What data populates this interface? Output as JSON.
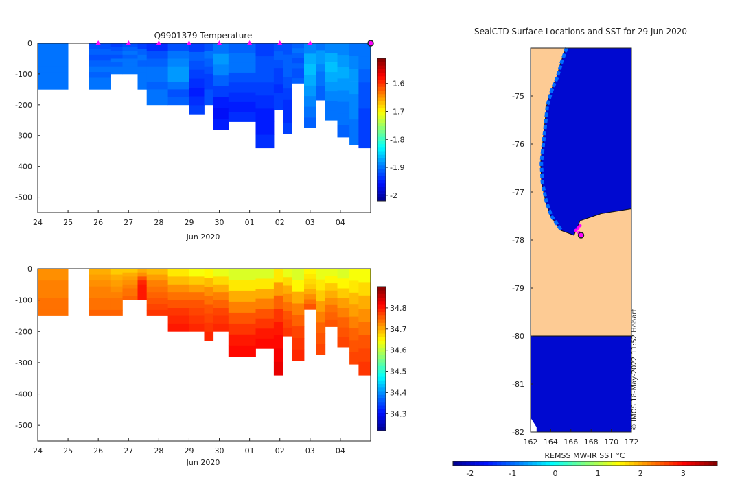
{
  "colors": {
    "temp_scale": [
      "#00008f",
      "#0010ff",
      "#0080ff",
      "#00ffff",
      "#80ff80",
      "#ffff00",
      "#ff8000",
      "#ff0000",
      "#800000"
    ],
    "land": "#fdcb94",
    "sea_deep": "#00008f",
    "marker": "#ff00ff"
  },
  "chart_data": [
    {
      "id": "temperature",
      "type": "heatmap",
      "title": "Q9901379  Temperature",
      "xlabel": "Jun 2020",
      "x_ticks": [
        "24",
        "25",
        "26",
        "27",
        "28",
        "29",
        "30",
        "01",
        "02",
        "03",
        "04"
      ],
      "x_range": [
        24,
        35
      ],
      "ylim": [
        -550,
        0
      ],
      "y_ticks": [
        0,
        -100,
        -200,
        -300,
        -400,
        -500
      ],
      "colorbar": {
        "range": [
          -2.02,
          -1.51
        ],
        "ticks": [
          -1.6,
          -1.7,
          -1.8,
          -1.9,
          -2
        ]
      },
      "markers_x": [
        26,
        27,
        28,
        29,
        30,
        31,
        32,
        33
      ],
      "endpoint_x": 35,
      "profiles": [
        {
          "x0": 24.0,
          "x1": 25.0,
          "depth": 150,
          "values": [
            -1.9,
            -1.9,
            -1.9,
            -1.9,
            -1.9,
            -1.9,
            -1.9,
            -1.9
          ]
        },
        {
          "x0": 25.7,
          "x1": 26.4,
          "depth": 150,
          "values": [
            -1.92,
            -1.91,
            -1.92,
            -1.91,
            -1.9,
            -1.91,
            -1.9,
            -1.9
          ]
        },
        {
          "x0": 26.4,
          "x1": 26.8,
          "depth": 100,
          "values": [
            -1.93,
            -1.92,
            -1.91,
            -1.92,
            -1.9,
            -1.91,
            -1.9,
            -1.9
          ]
        },
        {
          "x0": 26.8,
          "x1": 27.3,
          "depth": 100,
          "values": [
            -1.92,
            -1.91,
            -1.9,
            -1.91,
            -1.9,
            -1.9,
            -1.9,
            -1.9
          ]
        },
        {
          "x0": 27.3,
          "x1": 27.6,
          "depth": 150,
          "values": [
            -1.93,
            -1.91,
            -1.9,
            -1.91,
            -1.9,
            -1.9,
            -1.9,
            -1.9
          ]
        },
        {
          "x0": 27.6,
          "x1": 28.3,
          "depth": 200,
          "values": [
            -1.94,
            -1.92,
            -1.91,
            -1.9,
            -1.9,
            -1.91,
            -1.9,
            -1.9
          ]
        },
        {
          "x0": 28.3,
          "x1": 29.0,
          "depth": 200,
          "values": [
            -1.92,
            -1.9,
            -1.89,
            -1.88,
            -1.88,
            -1.9,
            -1.92,
            -1.91
          ]
        },
        {
          "x0": 29.0,
          "x1": 29.5,
          "depth": 230,
          "values": [
            -1.93,
            -1.91,
            -1.92,
            -1.93,
            -1.94,
            -1.95,
            -1.94,
            -1.93
          ]
        },
        {
          "x0": 29.5,
          "x1": 29.8,
          "depth": 200,
          "values": [
            -1.92,
            -1.9,
            -1.91,
            -1.92,
            -1.93,
            -1.93,
            -1.92,
            -1.92
          ]
        },
        {
          "x0": 29.8,
          "x1": 30.3,
          "depth": 280,
          "values": [
            -1.9,
            -1.88,
            -1.89,
            -1.91,
            -1.93,
            -1.95,
            -1.96,
            -1.95
          ]
        },
        {
          "x0": 30.3,
          "x1": 31.2,
          "depth": 255,
          "values": [
            -1.91,
            -1.9,
            -1.9,
            -1.92,
            -1.93,
            -1.94,
            -1.95,
            -1.94
          ]
        },
        {
          "x0": 31.2,
          "x1": 31.8,
          "depth": 340,
          "values": [
            -1.93,
            -1.92,
            -1.92,
            -1.93,
            -1.94,
            -1.95,
            -1.95,
            -1.94
          ]
        },
        {
          "x0": 31.8,
          "x1": 32.1,
          "depth": 215,
          "values": [
            -1.92,
            -1.91,
            -1.92,
            -1.93,
            -1.93,
            -1.94,
            -1.93,
            -1.93
          ]
        },
        {
          "x0": 32.1,
          "x1": 32.4,
          "depth": 295,
          "values": [
            -1.92,
            -1.91,
            -1.91,
            -1.92,
            -1.93,
            -1.94,
            -1.94,
            -1.93
          ]
        },
        {
          "x0": 32.4,
          "x1": 32.8,
          "depth": 130,
          "values": [
            -1.91,
            -1.9,
            -1.91,
            -1.92,
            -1.91,
            -1.92,
            -1.92,
            -1.91
          ]
        },
        {
          "x0": 32.8,
          "x1": 33.2,
          "depth": 275,
          "values": [
            -1.89,
            -1.87,
            -1.86,
            -1.87,
            -1.88,
            -1.89,
            -1.9,
            -1.91
          ]
        },
        {
          "x0": 33.2,
          "x1": 33.5,
          "depth": 185,
          "values": [
            -1.9,
            -1.88,
            -1.88,
            -1.89,
            -1.9,
            -1.9,
            -1.91,
            -1.91
          ]
        },
        {
          "x0": 33.5,
          "x1": 33.9,
          "depth": 250,
          "values": [
            -1.89,
            -1.87,
            -1.86,
            -1.87,
            -1.88,
            -1.89,
            -1.9,
            -1.9
          ]
        },
        {
          "x0": 33.9,
          "x1": 34.3,
          "depth": 305,
          "values": [
            -1.89,
            -1.88,
            -1.87,
            -1.88,
            -1.89,
            -1.9,
            -1.9,
            -1.91
          ]
        },
        {
          "x0": 34.3,
          "x1": 34.6,
          "depth": 330,
          "values": [
            -1.9,
            -1.89,
            -1.88,
            -1.88,
            -1.89,
            -1.89,
            -1.9,
            -1.9
          ]
        },
        {
          "x0": 34.6,
          "x1": 35.0,
          "depth": 340,
          "values": [
            -1.9,
            -1.9,
            -1.91,
            -1.92,
            -1.92,
            -1.93,
            -1.93,
            -1.93
          ]
        }
      ]
    },
    {
      "id": "salinity",
      "type": "heatmap",
      "title": "",
      "xlabel": "Jun 2020",
      "x_ticks": [
        "24",
        "25",
        "26",
        "27",
        "28",
        "29",
        "30",
        "01",
        "02",
        "03",
        "04"
      ],
      "x_range": [
        24,
        35
      ],
      "ylim": [
        -550,
        0
      ],
      "y_ticks": [
        0,
        -100,
        -200,
        -300,
        -400,
        -500
      ],
      "colorbar": {
        "range": [
          34.22,
          34.9
        ],
        "ticks": [
          34.8,
          34.7,
          34.6,
          34.5,
          34.4,
          34.3
        ]
      },
      "profiles": [
        {
          "x0": 24.0,
          "x1": 25.0,
          "depth": 150,
          "values": [
            34.72,
            34.72,
            34.73,
            34.73,
            34.73,
            34.74,
            34.74,
            34.74
          ]
        },
        {
          "x0": 25.7,
          "x1": 26.4,
          "depth": 150,
          "values": [
            34.7,
            34.71,
            34.72,
            34.73,
            34.73,
            34.74,
            34.74,
            34.75
          ]
        },
        {
          "x0": 26.4,
          "x1": 26.8,
          "depth": 150,
          "values": [
            34.68,
            34.7,
            34.71,
            34.72,
            34.73,
            34.74,
            34.74,
            34.75
          ]
        },
        {
          "x0": 26.8,
          "x1": 27.3,
          "depth": 100,
          "values": [
            34.68,
            34.7,
            34.71,
            34.72,
            34.73,
            34.74,
            34.74,
            34.75
          ]
        },
        {
          "x0": 27.3,
          "x1": 27.6,
          "depth": 100,
          "values": [
            34.7,
            34.72,
            34.76,
            34.79,
            34.8,
            34.8,
            34.8,
            34.8
          ]
        },
        {
          "x0": 27.6,
          "x1": 28.3,
          "depth": 150,
          "values": [
            34.69,
            34.71,
            34.73,
            34.74,
            34.75,
            34.76,
            34.77,
            34.78
          ]
        },
        {
          "x0": 28.3,
          "x1": 29.0,
          "depth": 200,
          "values": [
            34.66,
            34.69,
            34.72,
            34.74,
            34.76,
            34.78,
            34.79,
            34.8
          ]
        },
        {
          "x0": 29.0,
          "x1": 29.5,
          "depth": 200,
          "values": [
            34.64,
            34.68,
            34.71,
            34.74,
            34.76,
            34.77,
            34.78,
            34.79
          ]
        },
        {
          "x0": 29.5,
          "x1": 29.8,
          "depth": 230,
          "values": [
            34.65,
            34.69,
            34.72,
            34.74,
            34.76,
            34.77,
            34.78,
            34.79
          ]
        },
        {
          "x0": 29.8,
          "x1": 30.3,
          "depth": 200,
          "values": [
            34.63,
            34.67,
            34.7,
            34.73,
            34.75,
            34.77,
            34.78,
            34.79
          ]
        },
        {
          "x0": 30.3,
          "x1": 31.2,
          "depth": 280,
          "values": [
            34.62,
            34.66,
            34.7,
            34.73,
            34.76,
            34.78,
            34.8,
            34.81
          ]
        },
        {
          "x0": 31.2,
          "x1": 31.8,
          "depth": 255,
          "values": [
            34.62,
            34.66,
            34.7,
            34.73,
            34.76,
            34.78,
            34.8,
            34.81
          ]
        },
        {
          "x0": 31.8,
          "x1": 32.1,
          "depth": 340,
          "values": [
            34.66,
            34.71,
            34.75,
            34.78,
            34.8,
            34.81,
            34.82,
            34.83
          ]
        },
        {
          "x0": 32.1,
          "x1": 32.4,
          "depth": 215,
          "values": [
            34.63,
            34.67,
            34.7,
            34.72,
            34.74,
            34.76,
            34.77,
            34.78
          ]
        },
        {
          "x0": 32.4,
          "x1": 32.8,
          "depth": 295,
          "values": [
            34.62,
            34.65,
            34.7,
            34.73,
            34.75,
            34.77,
            34.78,
            34.79
          ]
        },
        {
          "x0": 32.8,
          "x1": 33.2,
          "depth": 130,
          "values": [
            34.65,
            34.66,
            34.67,
            34.68,
            34.7,
            34.72,
            34.74,
            34.76
          ]
        },
        {
          "x0": 33.2,
          "x1": 33.5,
          "depth": 275,
          "values": [
            34.63,
            34.66,
            34.68,
            34.71,
            34.73,
            34.75,
            34.76,
            34.77
          ]
        },
        {
          "x0": 33.5,
          "x1": 33.9,
          "depth": 185,
          "values": [
            34.63,
            34.65,
            34.68,
            34.7,
            34.72,
            34.74,
            34.75,
            34.76
          ]
        },
        {
          "x0": 33.9,
          "x1": 34.3,
          "depth": 250,
          "values": [
            34.62,
            34.65,
            34.68,
            34.71,
            34.73,
            34.75,
            34.76,
            34.77
          ]
        },
        {
          "x0": 34.3,
          "x1": 34.6,
          "depth": 305,
          "values": [
            34.64,
            34.66,
            34.69,
            34.71,
            34.73,
            34.75,
            34.76,
            34.77
          ]
        },
        {
          "x0": 34.6,
          "x1": 35.0,
          "depth": 340,
          "values": [
            34.64,
            34.67,
            34.7,
            34.72,
            34.74,
            34.76,
            34.77,
            34.78
          ]
        }
      ]
    },
    {
      "id": "sst_map",
      "type": "heatmap",
      "title": "SealCTD Surface Locations and SST for 29 Jun 2020",
      "x_ticks": [
        "162",
        "164",
        "166",
        "168",
        "170",
        "172"
      ],
      "y_ticks": [
        "-75",
        "-76",
        "-77",
        "-78",
        "-79",
        "-80",
        "-81",
        "-82"
      ],
      "lon_range": [
        162,
        172
      ],
      "lat_range": [
        -82,
        -74
      ],
      "colorbar": {
        "label": "REMSS MW-IR SST °C",
        "range": [
          -2.4,
          3.8
        ],
        "ticks": [
          "-2",
          "-1",
          "0",
          "1",
          "2",
          "3"
        ]
      },
      "credit": "© IMOS 18-May-2022 11:52 Hobart",
      "coast_lon_at_lat": [
        [
          -74.0,
          165.5
        ],
        [
          -74.3,
          165.0
        ],
        [
          -74.6,
          164.6
        ],
        [
          -74.9,
          164.0
        ],
        [
          -75.2,
          163.6
        ],
        [
          -75.6,
          163.4
        ],
        [
          -76.0,
          163.2
        ],
        [
          -76.4,
          163.0
        ],
        [
          -76.8,
          163.1
        ],
        [
          -77.2,
          163.5
        ],
        [
          -77.5,
          164.0
        ],
        [
          -77.8,
          165.0
        ],
        [
          -77.9,
          166.3
        ],
        [
          -77.6,
          166.9
        ],
        [
          -77.45,
          169.0
        ],
        [
          -77.4,
          170.5
        ],
        [
          -77.35,
          172.0
        ]
      ],
      "ice_shelf_edge_lat": -80.0,
      "coastal_water_value": -1.0,
      "open_water_value": -1.95,
      "track_points": [
        {
          "lon": 166.9,
          "lat": -77.7
        },
        {
          "lon": 166.7,
          "lat": -77.75
        },
        {
          "lon": 166.5,
          "lat": -77.8
        },
        {
          "lon": 166.8,
          "lat": -77.85
        },
        {
          "lon": 167.0,
          "lat": -77.9
        }
      ]
    }
  ]
}
